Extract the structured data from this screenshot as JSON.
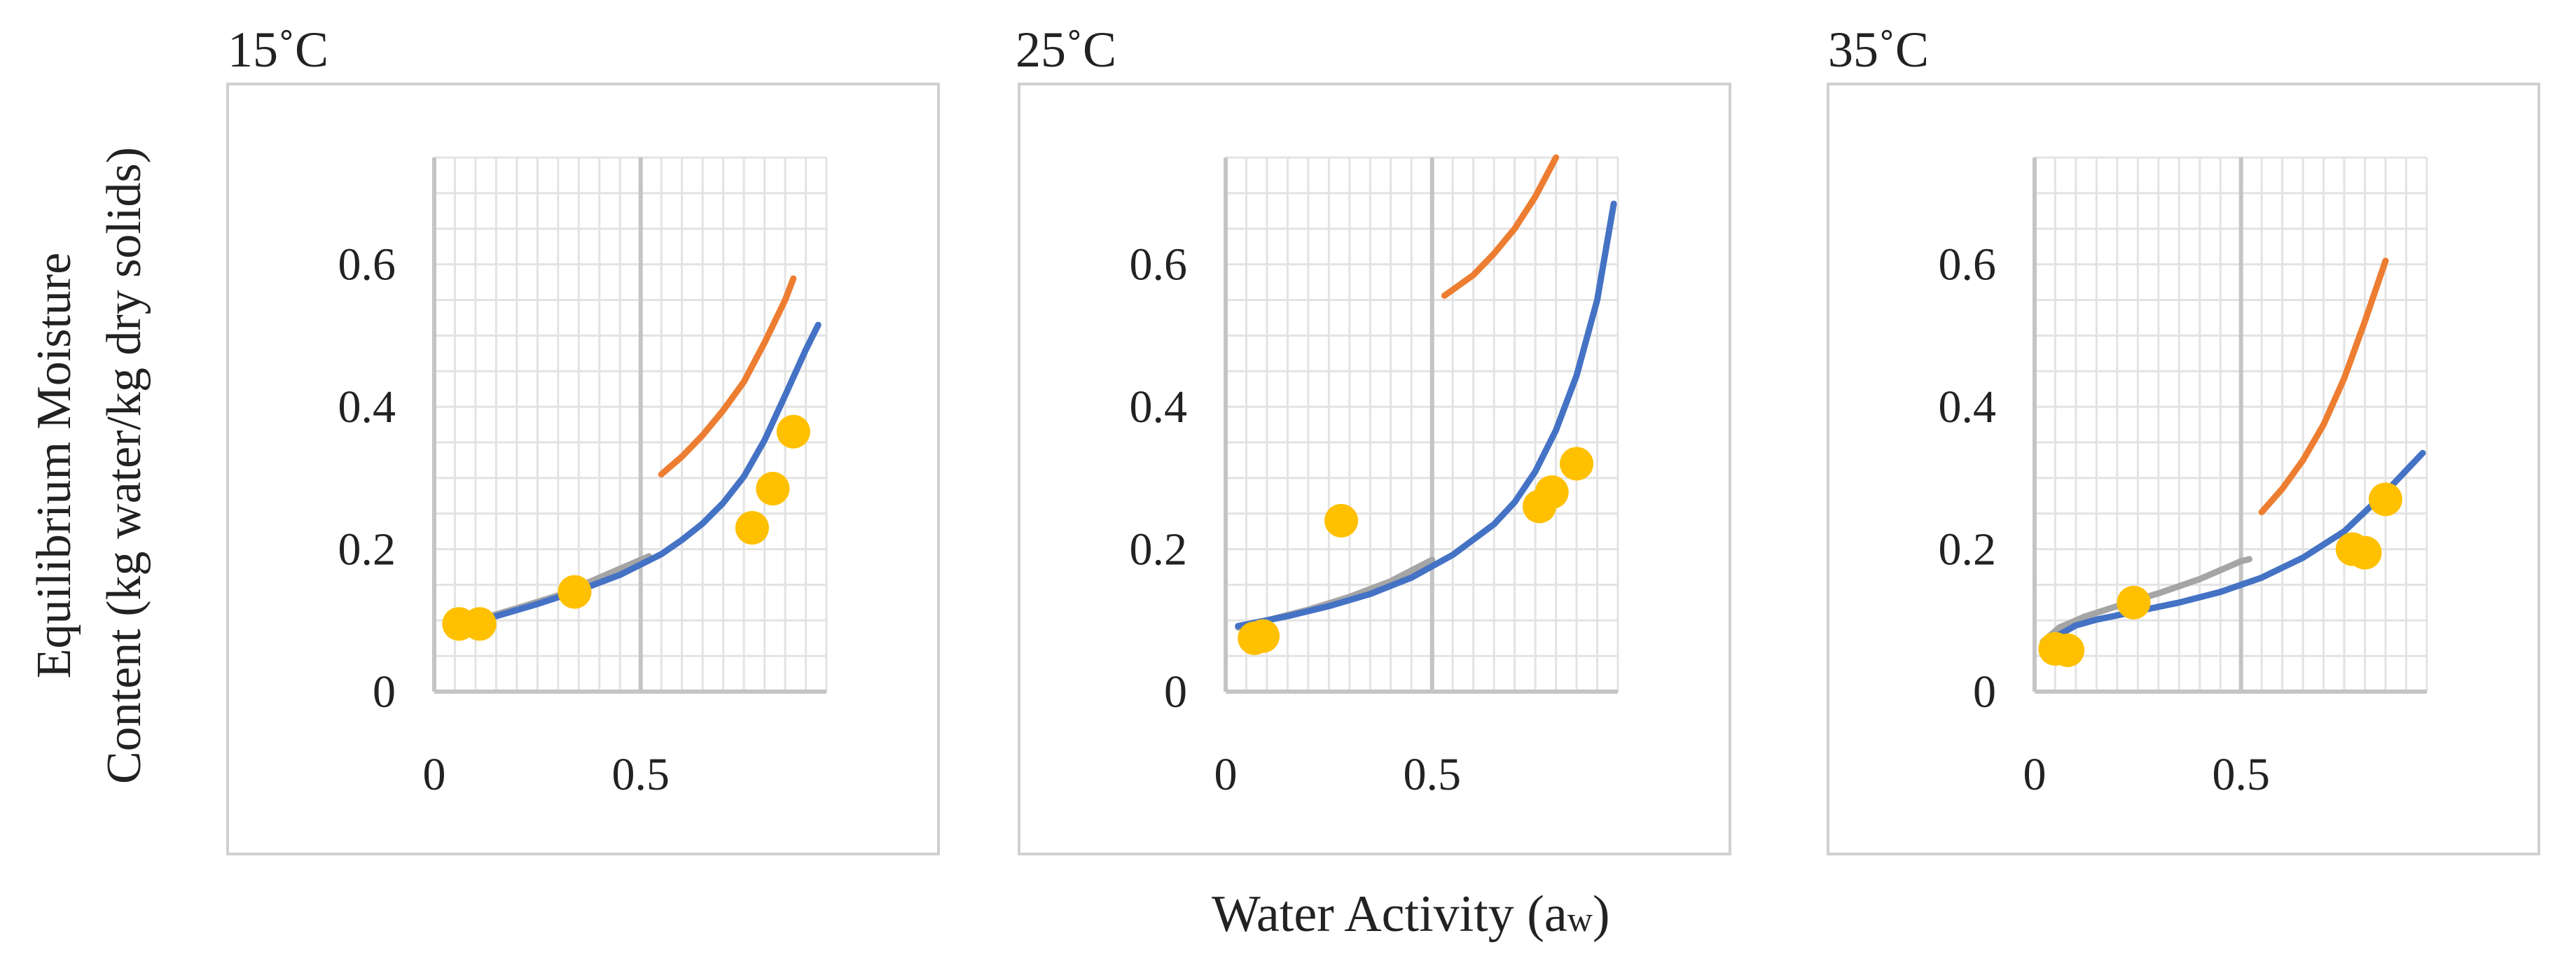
{
  "chart_data": {
    "type": "scatter",
    "ylabel_line1": "Equilibrium Moisture",
    "ylabel_line2": "Content (kg water/kg dry solids)",
    "xlabel_main": "Water Activity (a",
    "xlabel_sub": "w",
    "xlabel_close": ")",
    "xlim": [
      0,
      0.95
    ],
    "ylim": [
      0,
      0.75
    ],
    "x_ticks": [
      0,
      0.5
    ],
    "x_tick_labels": [
      "0",
      "0.5"
    ],
    "y_ticks": [
      0,
      0.2,
      0.4,
      0.6
    ],
    "y_tick_labels": [
      "0",
      "0.2",
      "0.4",
      "0.6"
    ],
    "colors": {
      "points": "#ffc000",
      "blue": "#4472c4",
      "orange": "#ed7d31",
      "gray": "#a5a5a5"
    },
    "panels": [
      {
        "title": "15˚C",
        "points": [
          [
            0.06,
            0.095
          ],
          [
            0.11,
            0.095
          ],
          [
            0.34,
            0.14
          ],
          [
            0.77,
            0.23
          ],
          [
            0.82,
            0.285
          ],
          [
            0.87,
            0.365
          ]
        ],
        "blue": [
          [
            0.05,
            0.088
          ],
          [
            0.15,
            0.106
          ],
          [
            0.25,
            0.123
          ],
          [
            0.35,
            0.142
          ],
          [
            0.45,
            0.164
          ],
          [
            0.55,
            0.193
          ],
          [
            0.6,
            0.213
          ],
          [
            0.65,
            0.236
          ],
          [
            0.7,
            0.265
          ],
          [
            0.75,
            0.302
          ],
          [
            0.8,
            0.353
          ],
          [
            0.85,
            0.416
          ],
          [
            0.9,
            0.48
          ],
          [
            0.93,
            0.515
          ]
        ],
        "orange": [
          [
            0.55,
            0.305
          ],
          [
            0.6,
            0.33
          ],
          [
            0.65,
            0.36
          ],
          [
            0.7,
            0.395
          ],
          [
            0.75,
            0.435
          ],
          [
            0.8,
            0.49
          ],
          [
            0.85,
            0.55
          ],
          [
            0.87,
            0.58
          ]
        ],
        "gray": [
          [
            0.03,
            0.088
          ],
          [
            0.1,
            0.1
          ],
          [
            0.2,
            0.117
          ],
          [
            0.3,
            0.135
          ],
          [
            0.4,
            0.16
          ],
          [
            0.52,
            0.19
          ]
        ]
      },
      {
        "title": "25˚C",
        "points": [
          [
            0.07,
            0.075
          ],
          [
            0.09,
            0.078
          ],
          [
            0.28,
            0.24
          ],
          [
            0.76,
            0.26
          ],
          [
            0.79,
            0.28
          ],
          [
            0.85,
            0.32
          ]
        ],
        "blue": [
          [
            0.03,
            0.092
          ],
          [
            0.15,
            0.106
          ],
          [
            0.25,
            0.12
          ],
          [
            0.35,
            0.137
          ],
          [
            0.45,
            0.16
          ],
          [
            0.55,
            0.192
          ],
          [
            0.65,
            0.235
          ],
          [
            0.7,
            0.266
          ],
          [
            0.75,
            0.309
          ],
          [
            0.8,
            0.367
          ],
          [
            0.85,
            0.444
          ],
          [
            0.9,
            0.55
          ],
          [
            0.94,
            0.685
          ]
        ],
        "orange": [
          [
            0.53,
            0.556
          ],
          [
            0.6,
            0.585
          ],
          [
            0.65,
            0.615
          ],
          [
            0.7,
            0.65
          ],
          [
            0.75,
            0.695
          ],
          [
            0.8,
            0.75
          ]
        ],
        "gray": [
          [
            0.03,
            0.09
          ],
          [
            0.1,
            0.1
          ],
          [
            0.2,
            0.115
          ],
          [
            0.3,
            0.133
          ],
          [
            0.4,
            0.155
          ],
          [
            0.5,
            0.185
          ]
        ]
      },
      {
        "title": "35˚C",
        "points": [
          [
            0.05,
            0.06
          ],
          [
            0.08,
            0.058
          ],
          [
            0.24,
            0.125
          ],
          [
            0.77,
            0.2
          ],
          [
            0.8,
            0.195
          ],
          [
            0.85,
            0.27
          ]
        ],
        "blue": [
          [
            0.04,
            0.068
          ],
          [
            0.06,
            0.08
          ],
          [
            0.1,
            0.093
          ],
          [
            0.15,
            0.101
          ],
          [
            0.25,
            0.113
          ],
          [
            0.35,
            0.125
          ],
          [
            0.45,
            0.14
          ],
          [
            0.55,
            0.16
          ],
          [
            0.65,
            0.188
          ],
          [
            0.75,
            0.225
          ],
          [
            0.85,
            0.28
          ],
          [
            0.94,
            0.335
          ]
        ],
        "orange": [
          [
            0.55,
            0.252
          ],
          [
            0.6,
            0.285
          ],
          [
            0.65,
            0.325
          ],
          [
            0.7,
            0.375
          ],
          [
            0.75,
            0.44
          ],
          [
            0.8,
            0.52
          ],
          [
            0.85,
            0.605
          ]
        ],
        "gray": [
          [
            0.02,
            0.07
          ],
          [
            0.06,
            0.09
          ],
          [
            0.12,
            0.105
          ],
          [
            0.2,
            0.12
          ],
          [
            0.3,
            0.138
          ],
          [
            0.4,
            0.158
          ],
          [
            0.5,
            0.183
          ],
          [
            0.52,
            0.186
          ]
        ]
      }
    ]
  }
}
